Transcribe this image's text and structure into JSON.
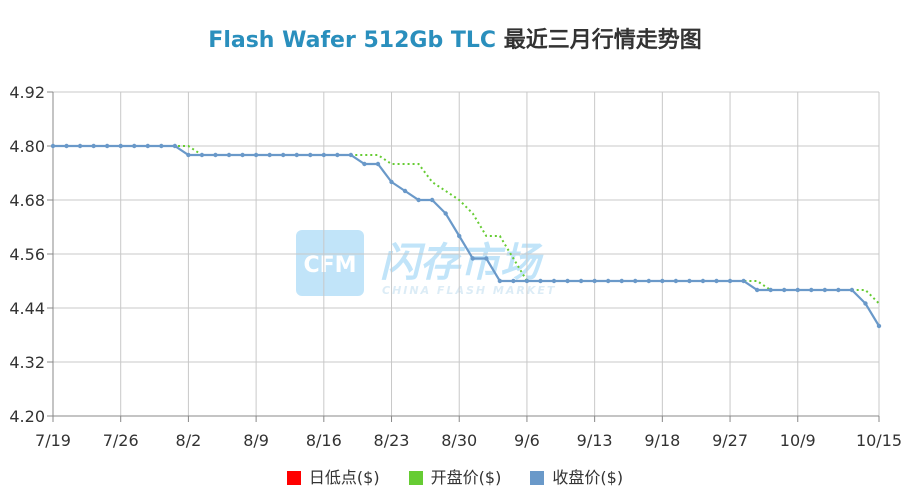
{
  "title": {
    "en": "Flash Wafer 512Gb TLC",
    "zh": "最近三月行情走势图"
  },
  "watermark": {
    "logo": "CFM",
    "name": "闪存市场",
    "sub": "CHINA FLASH MARKET"
  },
  "colors": {
    "low": "#ff0000",
    "open": "#66cc33",
    "close": "#6a99c9",
    "title_en": "#2a8fbd"
  },
  "chart_data": {
    "type": "line",
    "ylim": [
      4.2,
      4.92
    ],
    "yticks": [
      "4.92",
      "4.80",
      "4.68",
      "4.56",
      "4.44",
      "4.32",
      "4.20"
    ],
    "xtick_labels": [
      "7/19",
      "7/26",
      "8/2",
      "8/9",
      "8/16",
      "8/23",
      "8/30",
      "9/6",
      "9/13",
      "9/18",
      "9/27",
      "10/9",
      "10/15"
    ],
    "xtick_index": [
      0,
      5,
      10,
      15,
      20,
      25,
      30,
      35,
      40,
      45,
      50,
      55,
      61
    ],
    "grid": true,
    "legend_position": "bottom",
    "legend": [
      "日低点($)",
      "开盘价($)",
      "收盘价($)"
    ],
    "series": [
      {
        "name": "日低点($)",
        "values": []
      },
      {
        "name": "开盘价($)",
        "values": [
          4.8,
          4.8,
          4.8,
          4.8,
          4.8,
          4.8,
          4.8,
          4.8,
          4.8,
          4.8,
          4.8,
          4.78,
          4.78,
          4.78,
          4.78,
          4.78,
          4.78,
          4.78,
          4.78,
          4.78,
          4.78,
          4.78,
          4.78,
          4.78,
          4.78,
          4.76,
          4.76,
          4.76,
          4.72,
          4.7,
          4.68,
          4.65,
          4.6,
          4.6,
          4.55,
          4.5,
          4.5,
          4.5,
          4.5,
          4.5,
          4.5,
          4.5,
          4.5,
          4.5,
          4.5,
          4.5,
          4.5,
          4.5,
          4.5,
          4.5,
          4.5,
          4.5,
          4.5,
          4.48,
          4.48,
          4.48,
          4.48,
          4.48,
          4.48,
          4.48,
          4.48,
          4.45
        ]
      },
      {
        "name": "收盘价($)",
        "values": [
          4.8,
          4.8,
          4.8,
          4.8,
          4.8,
          4.8,
          4.8,
          4.8,
          4.8,
          4.8,
          4.78,
          4.78,
          4.78,
          4.78,
          4.78,
          4.78,
          4.78,
          4.78,
          4.78,
          4.78,
          4.78,
          4.78,
          4.78,
          4.76,
          4.76,
          4.72,
          4.7,
          4.68,
          4.68,
          4.65,
          4.6,
          4.55,
          4.55,
          4.5,
          4.5,
          4.5,
          4.5,
          4.5,
          4.5,
          4.5,
          4.5,
          4.5,
          4.5,
          4.5,
          4.5,
          4.5,
          4.5,
          4.5,
          4.5,
          4.5,
          4.5,
          4.5,
          4.48,
          4.48,
          4.48,
          4.48,
          4.48,
          4.48,
          4.48,
          4.48,
          4.45,
          4.4
        ]
      }
    ]
  }
}
